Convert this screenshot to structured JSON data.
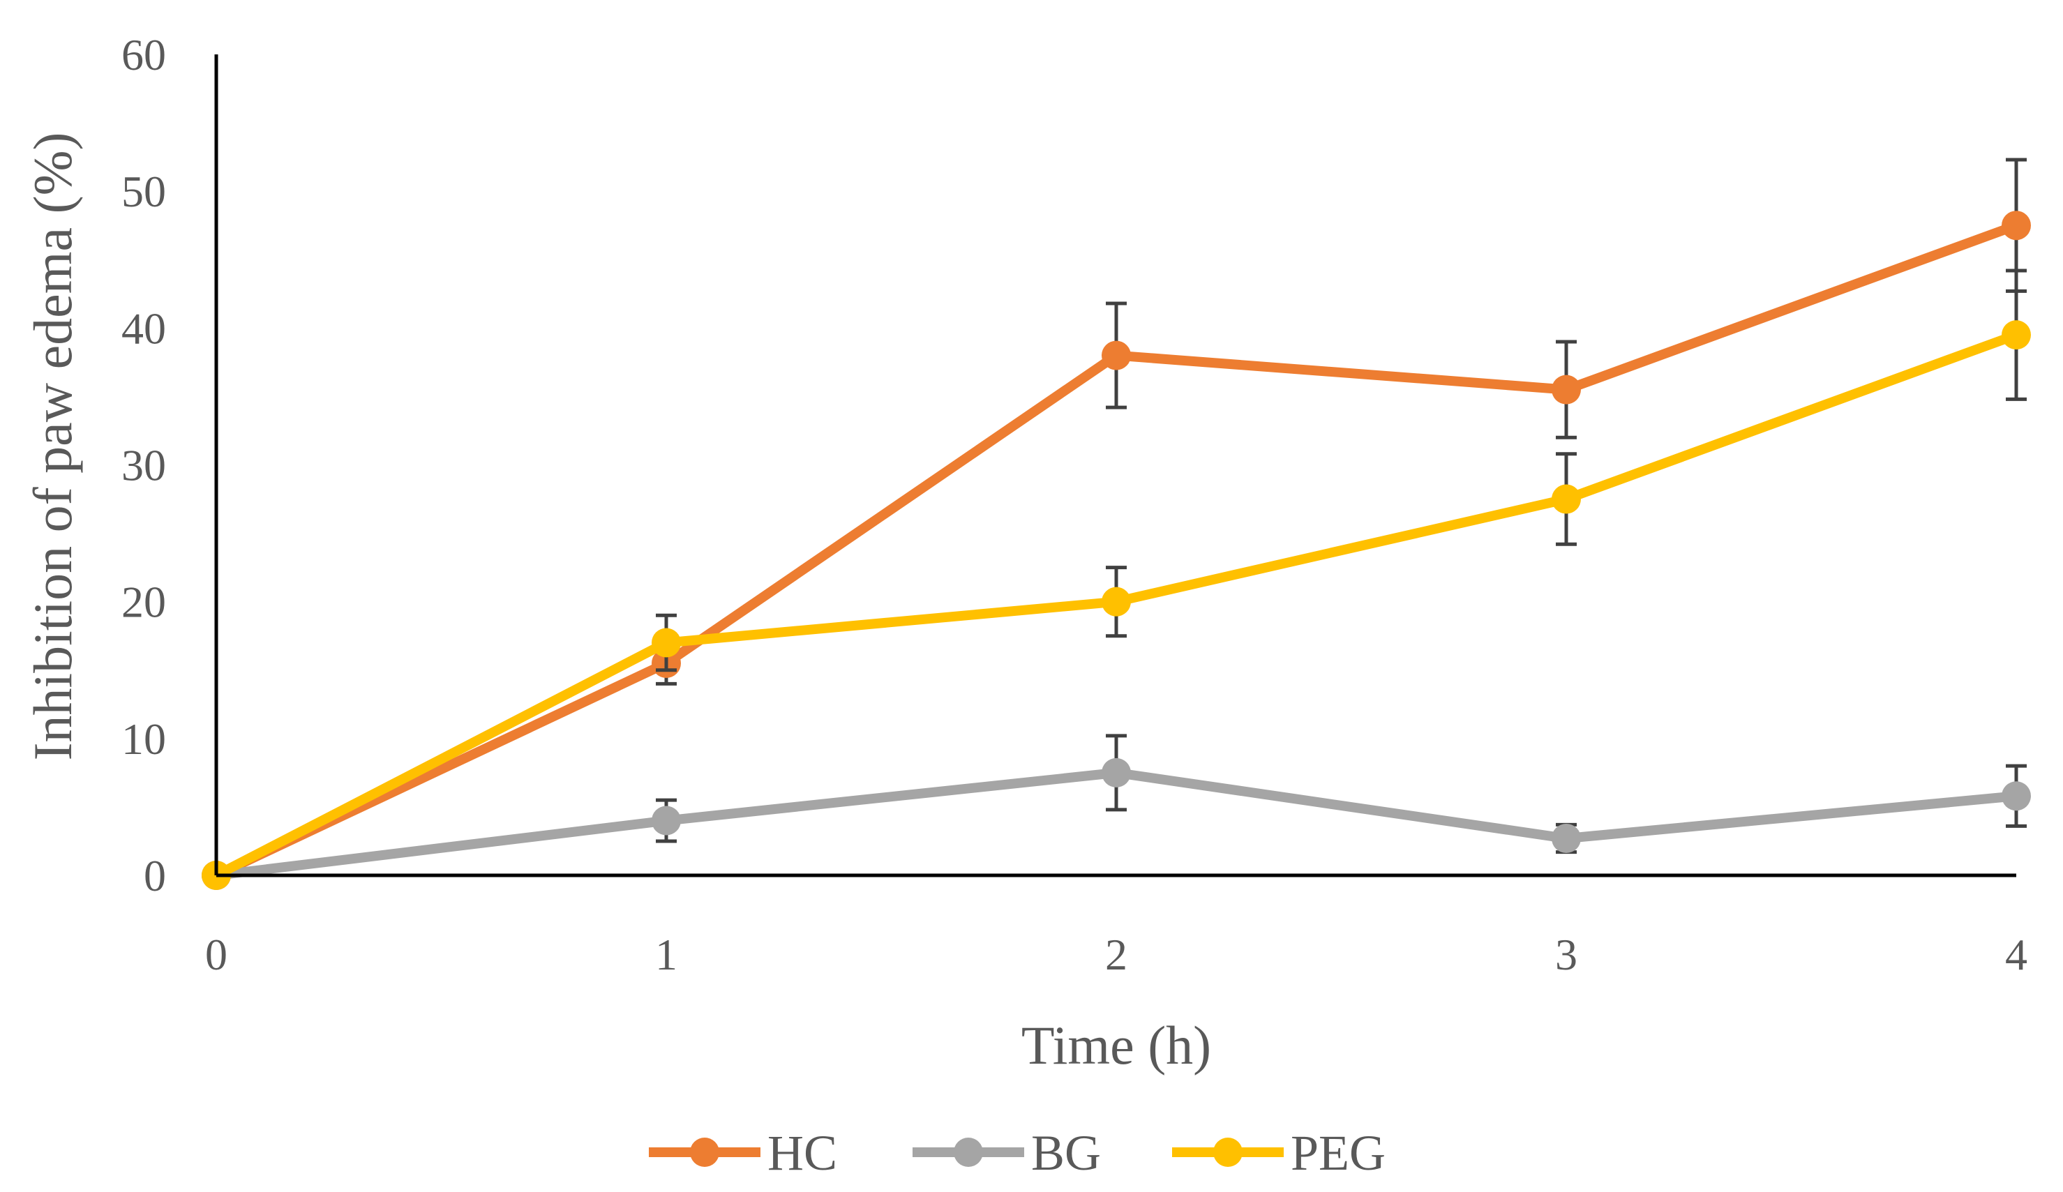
{
  "chart_data": {
    "type": "line",
    "title": "",
    "xlabel": "Time (h)",
    "ylabel": "Inhibition of paw edema (%)",
    "x": [
      0,
      1,
      2,
      3,
      4
    ],
    "xticks": [
      "0",
      "1",
      "2",
      "3",
      "4"
    ],
    "ylim": [
      0,
      60
    ],
    "yticks": [
      "0",
      "10",
      "20",
      "30",
      "40",
      "50",
      "60"
    ],
    "grid": false,
    "legend_position": "bottom-center",
    "series": [
      {
        "name": "HC",
        "color": "#ED7D31",
        "values": [
          0,
          15.5,
          38,
          35.5,
          47.5
        ],
        "errors": [
          0,
          1.5,
          3.8,
          3.5,
          4.8
        ]
      },
      {
        "name": "BG",
        "color": "#A5A5A5",
        "values": [
          0,
          4,
          7.5,
          2.7,
          5.8
        ],
        "errors": [
          0,
          1.5,
          2.7,
          1.0,
          2.2
        ]
      },
      {
        "name": "PEG",
        "color": "#FFC000",
        "values": [
          0,
          17,
          20,
          27.5,
          39.5
        ],
        "errors": [
          0,
          2.0,
          2.5,
          3.3,
          4.7
        ]
      }
    ]
  }
}
